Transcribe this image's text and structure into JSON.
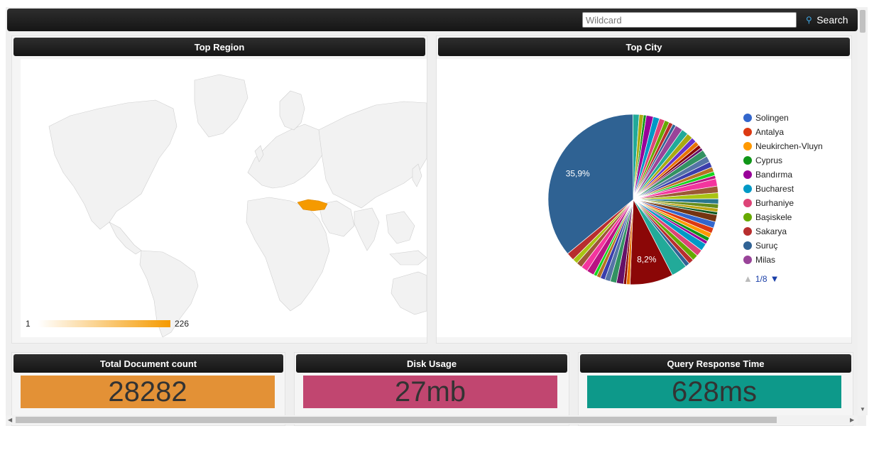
{
  "search": {
    "placeholder": "Wildcard",
    "button_label": "Search",
    "icon": "search-icon"
  },
  "panels": {
    "top_region": {
      "title": "Top Region",
      "legend_min": "1",
      "legend_max": "226",
      "highlight_color": "#f59a00"
    },
    "top_city": {
      "title": "Top City",
      "pager": "1/8"
    },
    "total_docs": {
      "title": "Total Document count",
      "value": "28282",
      "color": "#e39136"
    },
    "disk_usage": {
      "title": "Disk Usage",
      "value": "27mb",
      "color": "#c14670"
    },
    "query_time": {
      "title": "Query Response Time",
      "value": "628ms",
      "color": "#0d998a"
    }
  },
  "chart_data": {
    "type": "pie",
    "title": "Top City",
    "legend": [
      {
        "name": "Solingen",
        "color": "#3366cc"
      },
      {
        "name": "Antalya",
        "color": "#dc3912"
      },
      {
        "name": "Neukirchen-Vluyn",
        "color": "#ff9900"
      },
      {
        "name": "Cyprus",
        "color": "#109618"
      },
      {
        "name": "Bandırma",
        "color": "#990099"
      },
      {
        "name": "Bucharest",
        "color": "#0099c6"
      },
      {
        "name": "Burhaniye",
        "color": "#dd4477"
      },
      {
        "name": "Başiskele",
        "color": "#66aa00"
      },
      {
        "name": "Sakarya",
        "color": "#b82e2e"
      },
      {
        "name": "Suruç",
        "color": "#316395"
      },
      {
        "name": "Milas",
        "color": "#994499"
      }
    ],
    "slices": [
      {
        "value": 35.9,
        "color": "#2f6293",
        "label": "35,9%"
      },
      {
        "value": 8.2,
        "color": "#8b0707",
        "label": "8,2%"
      }
    ],
    "other_slices": 50
  }
}
